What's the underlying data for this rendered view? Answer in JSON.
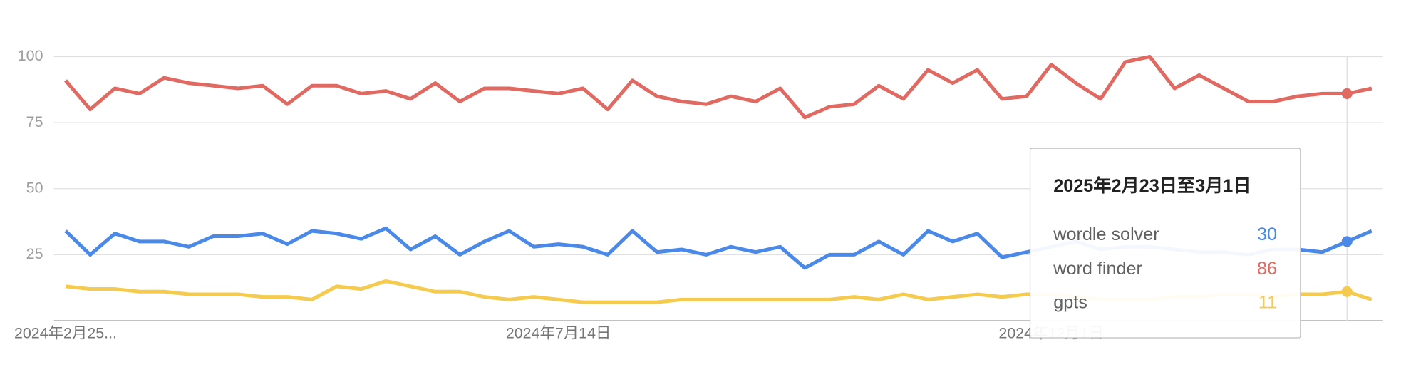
{
  "chart_data": {
    "type": "line",
    "categories": [
      "2024年2月25...",
      null,
      null,
      null,
      null,
      null,
      null,
      null,
      null,
      null,
      null,
      null,
      null,
      null,
      null,
      null,
      null,
      null,
      null,
      null,
      "2024年7月14日",
      null,
      null,
      null,
      null,
      null,
      null,
      null,
      null,
      null,
      null,
      null,
      null,
      null,
      null,
      null,
      null,
      null,
      null,
      null,
      "2024年12月1日",
      null,
      null,
      null,
      null,
      null,
      null,
      null,
      null,
      null,
      null,
      null,
      null,
      null
    ],
    "series": [
      {
        "name": "wordle solver",
        "color": "#4a89e8",
        "values": [
          34,
          25,
          33,
          30,
          30,
          28,
          32,
          32,
          33,
          29,
          34,
          33,
          31,
          35,
          27,
          32,
          25,
          30,
          34,
          28,
          29,
          28,
          25,
          34,
          26,
          27,
          25,
          28,
          26,
          28,
          20,
          25,
          25,
          30,
          25,
          34,
          30,
          33,
          24,
          26,
          28,
          30,
          27,
          28,
          28,
          27,
          26,
          26,
          25,
          27,
          27,
          26,
          30,
          34
        ]
      },
      {
        "name": "word finder",
        "color": "#e06a62",
        "values": [
          91,
          80,
          88,
          86,
          92,
          90,
          89,
          88,
          89,
          82,
          89,
          89,
          86,
          87,
          84,
          90,
          83,
          88,
          88,
          87,
          86,
          88,
          80,
          91,
          85,
          83,
          82,
          85,
          83,
          88,
          77,
          81,
          82,
          89,
          84,
          95,
          90,
          95,
          84,
          85,
          97,
          90,
          84,
          98,
          100,
          88,
          93,
          88,
          83,
          83,
          85,
          86,
          86,
          88
        ]
      },
      {
        "name": "gpts",
        "color": "#f5cb4f",
        "values": [
          13,
          12,
          12,
          11,
          11,
          10,
          10,
          10,
          9,
          9,
          8,
          13,
          12,
          15,
          13,
          11,
          11,
          9,
          8,
          9,
          8,
          7,
          7,
          7,
          7,
          8,
          8,
          8,
          8,
          8,
          8,
          8,
          9,
          8,
          10,
          8,
          9,
          10,
          9,
          10,
          10,
          9,
          8,
          8,
          8,
          9,
          9,
          10,
          10,
          9,
          10,
          10,
          11,
          8
        ]
      }
    ],
    "ylim": [
      0,
      100
    ],
    "yticks": [
      25,
      50,
      75,
      100
    ],
    "grid": true,
    "tooltip": {
      "title": "2025年2月23日至3月1日",
      "index": 52
    }
  }
}
